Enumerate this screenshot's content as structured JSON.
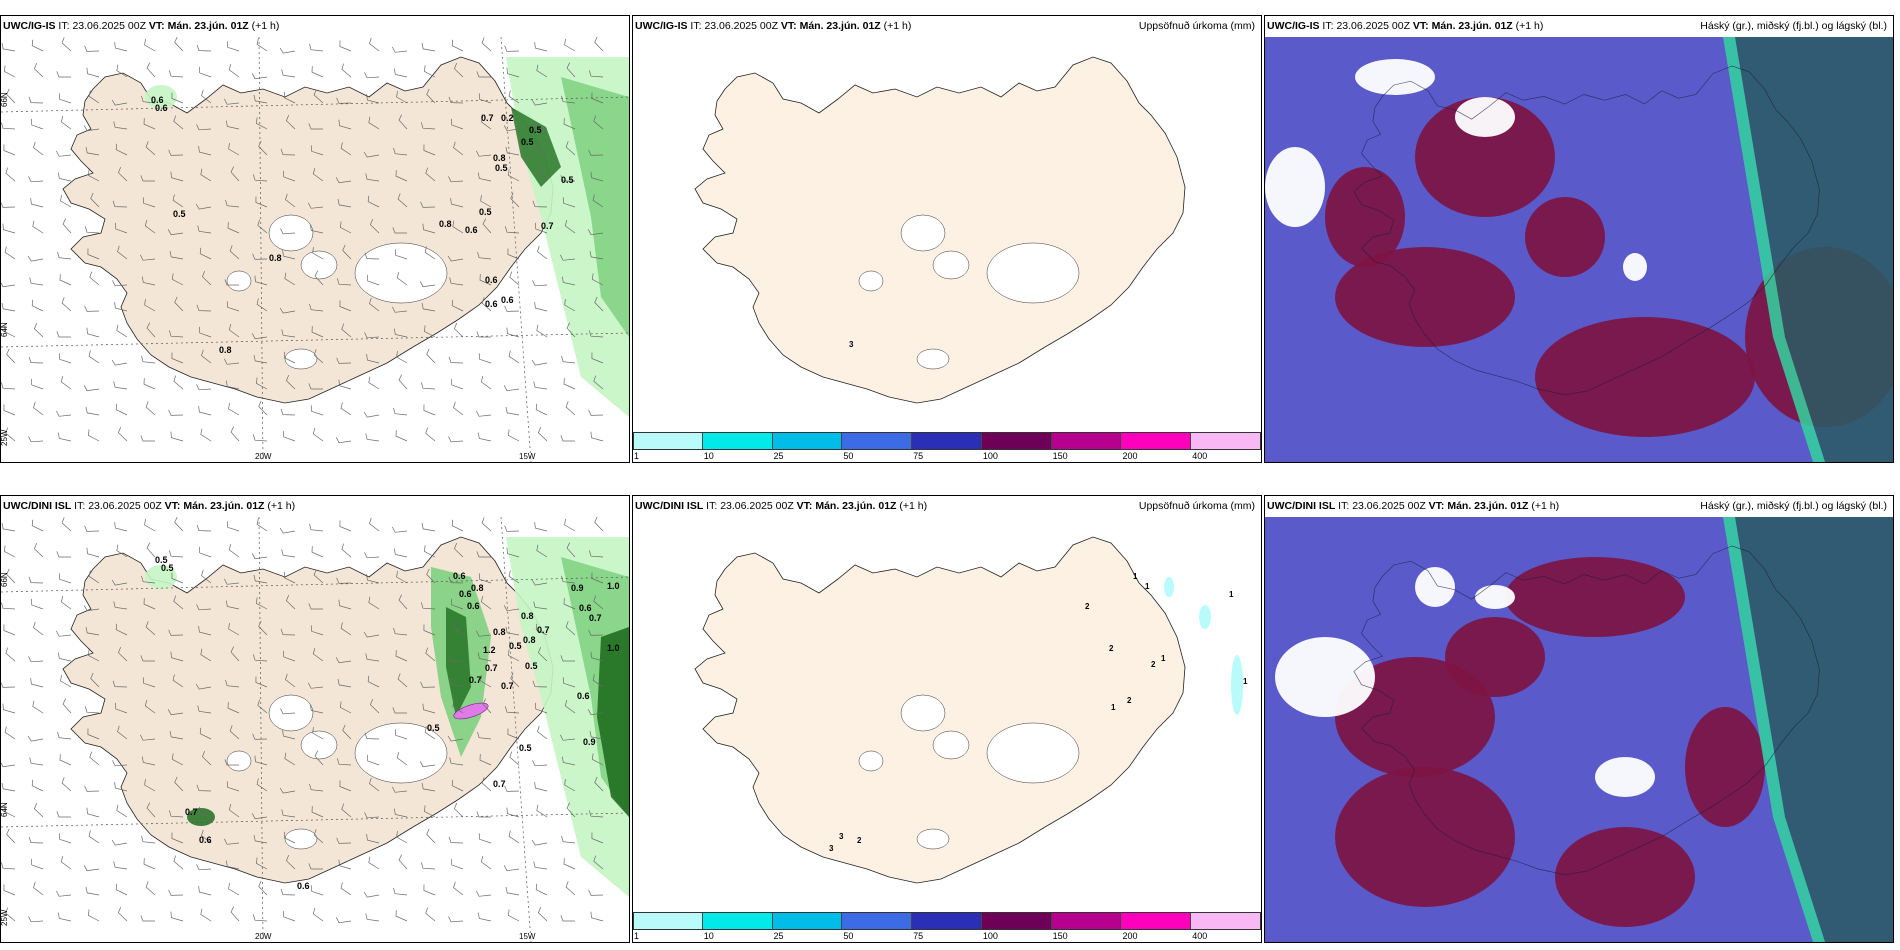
{
  "rows": [
    {
      "model": "UWC/IG-IS",
      "it_label": "IT:",
      "it_value": "23.06.2025 00Z",
      "vt_label": "VT:",
      "vt_value": "Mán. 23.jún. 01Z",
      "offset": "(+1 h)",
      "precip_title": "Uppsöfnuð úrkoma (mm)",
      "cloud_title": "Háský (gr.), miðský (fj.bl.) og lágský (bl.)",
      "wind_values": [
        "0.6",
        "0.6",
        "0.5",
        "0.8",
        "0.8",
        "0.7",
        "0.2",
        "0.5",
        "0.5",
        "0.8",
        "0.5",
        "0.5",
        "0.7",
        "0.5",
        "0.8",
        "0.6",
        "0.6",
        "0.6",
        "0.6"
      ],
      "precip_values": [
        "3"
      ]
    },
    {
      "model": "UWC/DINI ISL",
      "it_label": "IT:",
      "it_value": "23.06.2025 00Z",
      "vt_label": "VT:",
      "vt_value": "Mán. 23.jún. 01Z",
      "offset": "(+1 h)",
      "precip_title": "Uppsöfnuð úrkoma (mm)",
      "cloud_title": "Háský (gr.), miðský (fj.bl.) og lágský (bl.)",
      "wind_values": [
        "0.5",
        "0.5",
        "0.6",
        "0.8",
        "0.6",
        "0.6",
        "0.8",
        "0.7",
        "0.9",
        "0.6",
        "0.8",
        "0.5",
        "0.7",
        "0.8",
        "0.5",
        "0.7",
        "1.0",
        "1.0",
        "0.6",
        "0.7",
        "0.5",
        "0.5",
        "0.7",
        "0.6",
        "0.7",
        "0.6",
        "0.9",
        "0.7",
        "1.2"
      ],
      "precip_values": [
        "1",
        "1",
        "1",
        "2",
        "2",
        "1",
        "2",
        "2",
        "1",
        "1",
        "3",
        "3",
        "2"
      ]
    }
  ],
  "axes": {
    "lat_66": "66N",
    "lat_64": "64N",
    "lon_25": "25W",
    "lon_20": "20W",
    "lon_15": "15W"
  },
  "colorbar": {
    "ticks": [
      "1",
      "10",
      "25",
      "50",
      "75",
      "100",
      "150",
      "200",
      "400"
    ],
    "colors": [
      "#b9fbfb",
      "#00eaea",
      "#00bde8",
      "#3d6be6",
      "#2b2fb5",
      "#6e0058",
      "#b8008f",
      "#ff00bd",
      "#f7b8f4"
    ]
  },
  "colors": {
    "land": "#f3e6d6",
    "land_precip_panel": "#fdf1e3",
    "light_green": "#c4f5c4",
    "mid_green": "#7fd07f",
    "dark_green": "#1f6e1f",
    "cloud_blue": "#5a5acb",
    "cloud_maroon": "#7d1442",
    "cloud_teal": "#2a5c63",
    "cloud_seafoam": "#34d3a0"
  }
}
